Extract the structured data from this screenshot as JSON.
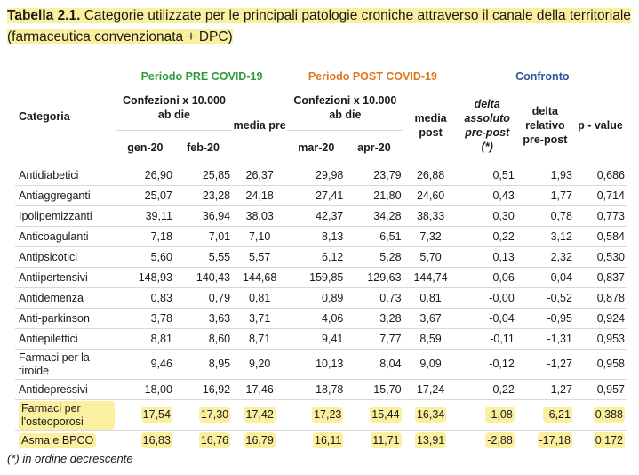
{
  "title": {
    "bold": "Tabella 2.1.",
    "text": " Categorie utilizzate per le principali patologie croniche attraverso il canale della territoriale  (farmaceutica  convenzionata + DPC)"
  },
  "header": {
    "category": "Categoria",
    "group_pre": "Periodo PRE COVID-19",
    "group_post": "Periodo POST COVID-19",
    "group_cmp": "Confronto",
    "conf_pre": "Confezioni x 10.000 ab die",
    "conf_post": "Confezioni x 10.000 ab die",
    "media_pre": "media pre",
    "media_post": "media post",
    "delta_abs": "delta assoluto pre-post (*)",
    "delta_rel": "delta relativo pre-post",
    "pvalue": "p - value",
    "gen": "gen-20",
    "feb": "feb-20",
    "mar": "mar-20",
    "apr": "apr-20"
  },
  "rows": [
    {
      "cat": "Antidiabetici",
      "v": [
        "26,90",
        "25,85",
        "26,37",
        "29,98",
        "23,79",
        "26,88",
        "0,51",
        "1,93",
        "0,686"
      ]
    },
    {
      "cat": "Antiaggreganti",
      "v": [
        "25,07",
        "23,28",
        "24,18",
        "27,41",
        "21,80",
        "24,60",
        "0,43",
        "1,77",
        "0,714"
      ]
    },
    {
      "cat": "Ipolipemizzanti",
      "v": [
        "39,11",
        "36,94",
        "38,03",
        "42,37",
        "34,28",
        "38,33",
        "0,30",
        "0,78",
        "0,773"
      ]
    },
    {
      "cat": "Anticoagulanti",
      "v": [
        "7,18",
        "7,01",
        "7,10",
        "8,13",
        "6,51",
        "7,32",
        "0,22",
        "3,12",
        "0,584"
      ]
    },
    {
      "cat": "Antipsicotici",
      "v": [
        "5,60",
        "5,55",
        "5,57",
        "6,12",
        "5,28",
        "5,70",
        "0,13",
        "2,32",
        "0,530"
      ]
    },
    {
      "cat": "Antiipertensivi",
      "v": [
        "148,93",
        "140,43",
        "144,68",
        "159,85",
        "129,63",
        "144,74",
        "0,06",
        "0,04",
        "0,837"
      ]
    },
    {
      "cat": "Antidemenza",
      "v": [
        "0,83",
        "0,79",
        "0,81",
        "0,89",
        "0,73",
        "0,81",
        "-0,00",
        "-0,52",
        "0,878"
      ]
    },
    {
      "cat": "Anti-parkinson",
      "v": [
        "3,78",
        "3,63",
        "3,71",
        "4,06",
        "3,28",
        "3,67",
        "-0,04",
        "-0,95",
        "0,924"
      ]
    },
    {
      "cat": "Antiepilettici",
      "v": [
        "8,81",
        "8,60",
        "8,71",
        "9,41",
        "7,77",
        "8,59",
        "-0,11",
        "-1,31",
        "0,953"
      ]
    },
    {
      "cat": "Farmaci per la tiroide",
      "v": [
        "9,46",
        "8,95",
        "9,20",
        "10,13",
        "8,04",
        "9,09",
        "-0,12",
        "-1,27",
        "0,958"
      ]
    },
    {
      "cat": "Antidepressivi",
      "v": [
        "18,00",
        "16,92",
        "17,46",
        "18,78",
        "15,70",
        "17,24",
        "-0,22",
        "-1,27",
        "0,957"
      ]
    },
    {
      "cat": "Farmaci per l'osteoporosi",
      "v": [
        "17,54",
        "17,30",
        "17,42",
        "17,23",
        "15,44",
        "16,34",
        "-1,08",
        "-6,21",
        "0,388"
      ],
      "highlight": true
    },
    {
      "cat": "Asma e BPCO",
      "v": [
        "16,83",
        "16,76",
        "16,79",
        "16,11",
        "11,71",
        "13,91",
        "-2,88",
        "-17,18",
        "0,172"
      ],
      "highlight": true
    }
  ],
  "footnote": "(*) in ordine decrescente",
  "colors": {
    "highlight": "#fbf0a0",
    "green": "#2e9a3a",
    "orange": "#e0761c",
    "blue": "#2f5496"
  }
}
